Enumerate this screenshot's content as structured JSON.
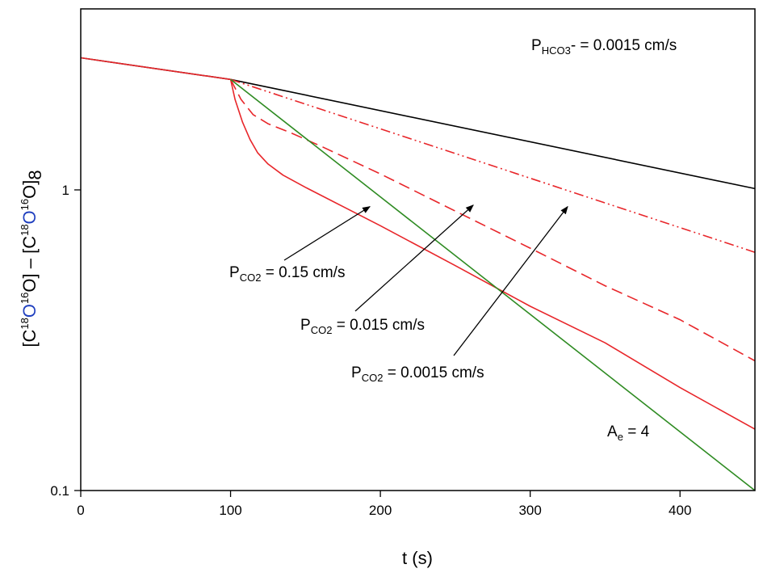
{
  "chart_data": {
    "type": "line",
    "y_scale": "log",
    "xlim": [
      0,
      450
    ],
    "ylim": [
      0.1,
      4
    ],
    "xlabel": "t (s)",
    "ylabel": {
      "p1": "[C",
      "s1": "18",
      "p2": "O",
      "s2": "16",
      "p3": "O] – [C",
      "s3": "18",
      "p4": "O",
      "s4": "16",
      "p5": "O]",
      "sub": "8",
      "highlight_color": "#1f3fbf"
    },
    "x_ticks": [
      0,
      100,
      200,
      300,
      400
    ],
    "x_tick_labels": [
      "0",
      "100",
      "200",
      "300",
      "400"
    ],
    "y_ticks": [
      0.1,
      1
    ],
    "y_tick_labels": [
      "0.1",
      "1"
    ],
    "grid": false,
    "series": [
      {
        "color": "#000000",
        "dash": "solid",
        "x": [
          0,
          100,
          450
        ],
        "y": [
          2.75,
          2.33,
          1.01
        ]
      },
      {
        "color": "#e8262a",
        "dash": "dashdotdot",
        "x": [
          100,
          450
        ],
        "y": [
          2.33,
          0.62
        ]
      },
      {
        "color": "#e8262a",
        "dash": "dashed",
        "x": [
          100,
          107,
          115,
          125,
          140,
          160,
          200,
          250,
          300,
          350,
          400,
          450
        ],
        "y": [
          2.33,
          2.0,
          1.78,
          1.66,
          1.55,
          1.4,
          1.13,
          0.85,
          0.64,
          0.48,
          0.37,
          0.27
        ]
      },
      {
        "color": "#e8262a",
        "dash": "solid",
        "x": [
          0,
          100,
          103,
          108,
          113,
          118,
          125,
          135,
          150,
          175,
          200,
          250,
          300,
          350,
          400,
          450
        ],
        "y": [
          2.75,
          2.33,
          2.0,
          1.68,
          1.47,
          1.33,
          1.22,
          1.12,
          1.02,
          0.88,
          0.76,
          0.56,
          0.41,
          0.31,
          0.22,
          0.16
        ]
      },
      {
        "color": "#2e8b22",
        "dash": "solid",
        "x": [
          100,
          450
        ],
        "y": [
          2.33,
          0.1
        ]
      }
    ],
    "annotations": [
      {
        "text_main": "P",
        "text_sub": "HCO3",
        "text_rest": "- = 0.0015 cm/s"
      },
      {
        "text_main": "P",
        "text_sub": "CO2",
        "text_rest": " = 0.15 cm/s",
        "arrow_to": [
          193,
          0.88
        ]
      },
      {
        "text_main": "P",
        "text_sub": "CO2",
        "text_rest": " = 0.015 cm/s",
        "arrow_to": [
          262,
          0.89
        ]
      },
      {
        "text_main": "P",
        "text_sub": "CO2",
        "text_rest": " = 0.0015 cm/s",
        "arrow_to": [
          325,
          0.88
        ]
      },
      {
        "text_main": "A",
        "text_sub": "e",
        "text_rest": " = 4"
      }
    ]
  }
}
